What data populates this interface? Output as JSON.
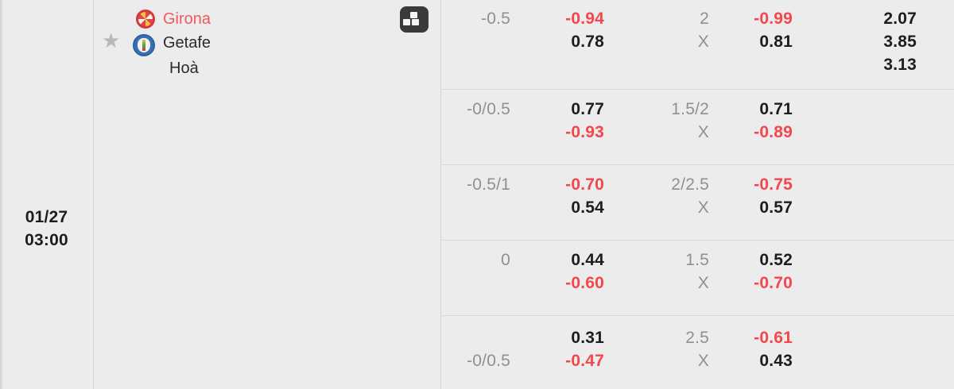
{
  "match": {
    "date": "01/27",
    "time": "03:00",
    "home_team": "Girona",
    "away_team": "Getafe",
    "draw_label": "Hoà"
  },
  "icons": {
    "favorite": "star-icon",
    "stats": "stats-icon",
    "star_glyph": "★"
  },
  "colors": {
    "background": "#ececec",
    "divider": "#d8d8d8",
    "odds_red": "#f4464c",
    "odds_dark": "#1c1d1f",
    "line_gray": "#8f9093",
    "home_team_red": "#ef5a5e",
    "star_gray": "#b9b9b9",
    "stats_icon_bg": "#3a3a3c"
  },
  "odds": {
    "rows": [
      {
        "ah_line": [
          {
            "t": "-0.5",
            "c": "gray"
          }
        ],
        "ah_odds": [
          {
            "t": "-0.94",
            "c": "red"
          },
          {
            "t": "0.78",
            "c": "dark"
          }
        ],
        "ou_line": [
          {
            "t": "2",
            "c": "gray"
          },
          {
            "t": "X",
            "c": "gray"
          }
        ],
        "ou_odds": [
          {
            "t": "-0.99",
            "c": "red"
          },
          {
            "t": "0.81",
            "c": "dark"
          }
        ],
        "oneXtwo": [
          {
            "t": "2.07",
            "c": "dark"
          },
          {
            "t": "3.85",
            "c": "dark"
          },
          {
            "t": "3.13",
            "c": "dark"
          }
        ]
      },
      {
        "ah_line": [
          {
            "t": "-0/0.5",
            "c": "gray"
          }
        ],
        "ah_odds": [
          {
            "t": "0.77",
            "c": "dark"
          },
          {
            "t": "-0.93",
            "c": "red"
          }
        ],
        "ou_line": [
          {
            "t": "1.5/2",
            "c": "gray"
          },
          {
            "t": "X",
            "c": "gray"
          }
        ],
        "ou_odds": [
          {
            "t": "0.71",
            "c": "dark"
          },
          {
            "t": "-0.89",
            "c": "red"
          }
        ]
      },
      {
        "ah_line": [
          {
            "t": "-0.5/1",
            "c": "gray"
          }
        ],
        "ah_odds": [
          {
            "t": "-0.70",
            "c": "red"
          },
          {
            "t": "0.54",
            "c": "dark"
          }
        ],
        "ou_line": [
          {
            "t": "2/2.5",
            "c": "gray"
          },
          {
            "t": "X",
            "c": "gray"
          }
        ],
        "ou_odds": [
          {
            "t": "-0.75",
            "c": "red"
          },
          {
            "t": "0.57",
            "c": "dark"
          }
        ]
      },
      {
        "ah_line": [
          {
            "t": "0",
            "c": "gray"
          }
        ],
        "ah_odds": [
          {
            "t": "0.44",
            "c": "dark"
          },
          {
            "t": "-0.60",
            "c": "red"
          }
        ],
        "ou_line": [
          {
            "t": "1.5",
            "c": "gray"
          },
          {
            "t": "X",
            "c": "gray"
          }
        ],
        "ou_odds": [
          {
            "t": "0.52",
            "c": "dark"
          },
          {
            "t": "-0.70",
            "c": "red"
          }
        ]
      },
      {
        "ah_line": [
          {
            "t": "",
            "c": "gray"
          },
          {
            "t": "-0/0.5",
            "c": "gray"
          }
        ],
        "ah_odds": [
          {
            "t": "0.31",
            "c": "dark"
          },
          {
            "t": "-0.47",
            "c": "red"
          }
        ],
        "ou_line": [
          {
            "t": "2.5",
            "c": "gray"
          },
          {
            "t": "X",
            "c": "gray"
          }
        ],
        "ou_odds": [
          {
            "t": "-0.61",
            "c": "red"
          },
          {
            "t": "0.43",
            "c": "dark"
          }
        ]
      }
    ]
  }
}
